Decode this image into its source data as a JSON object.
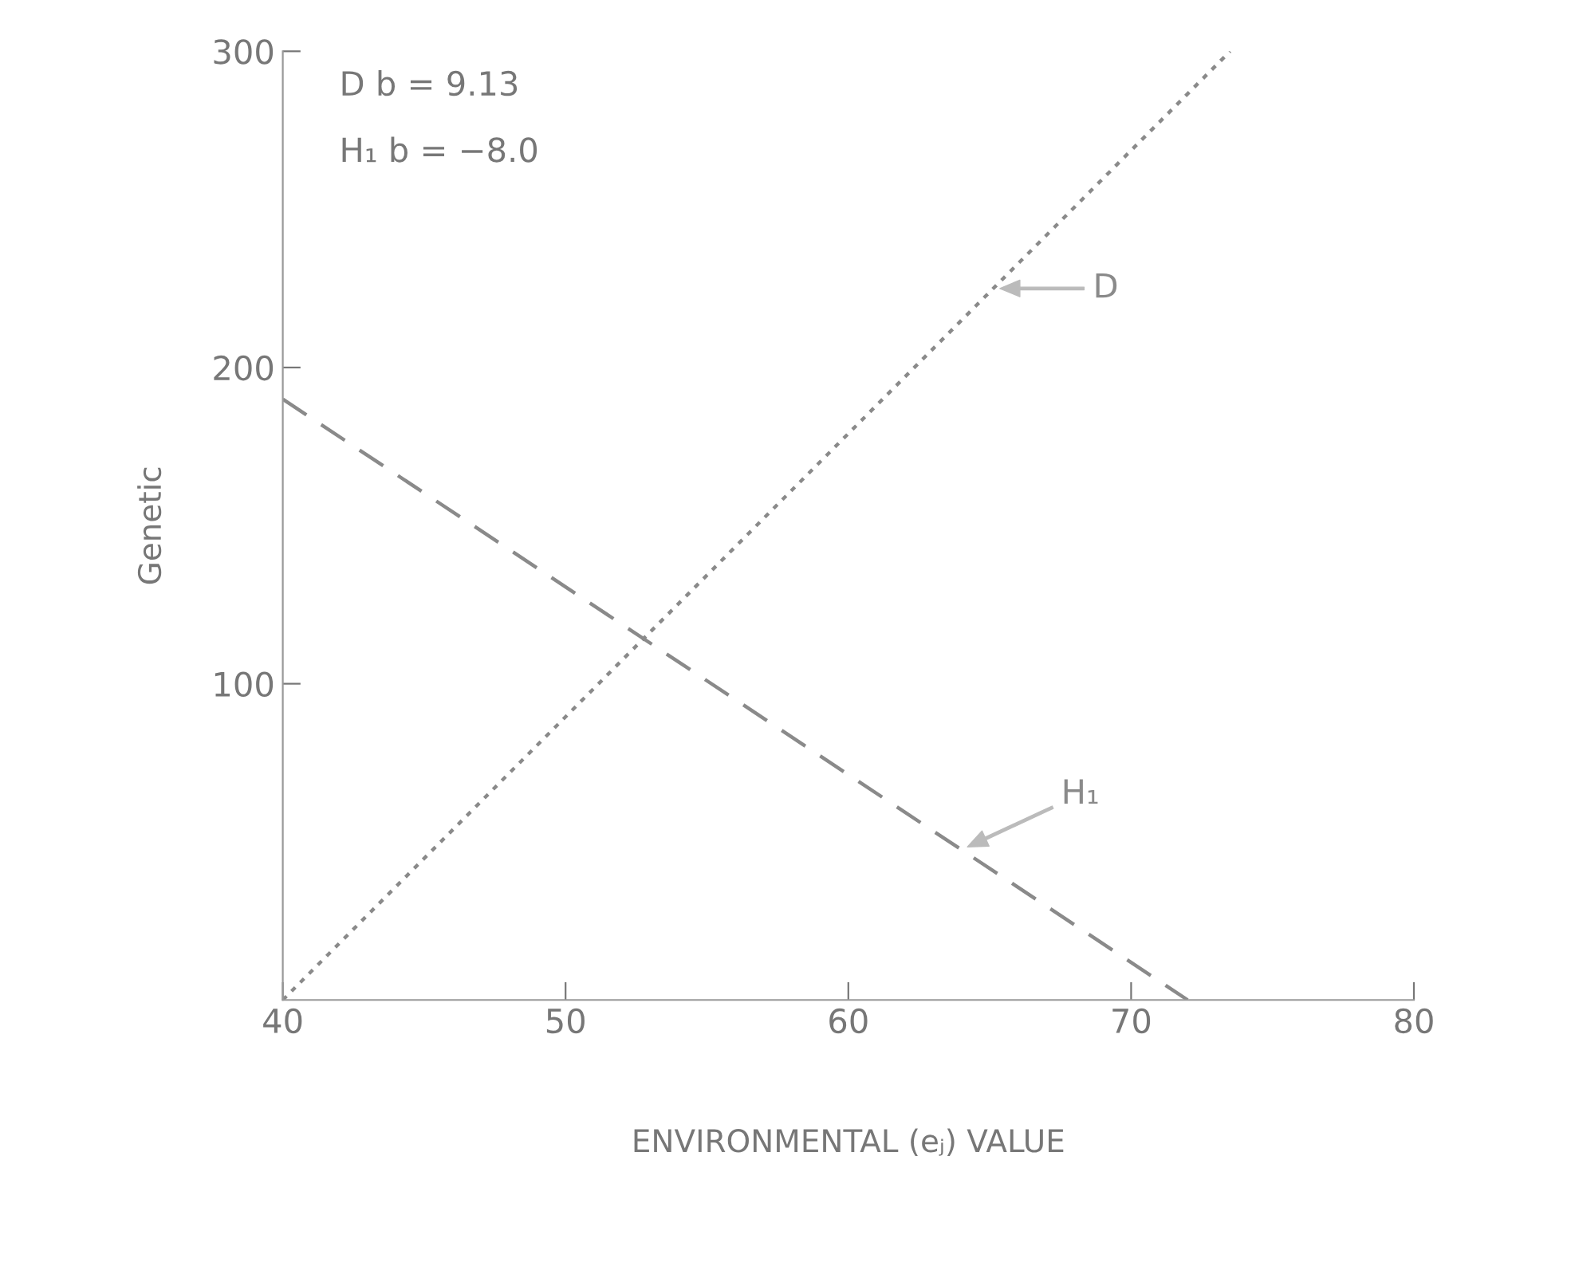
{
  "chart_data": {
    "type": "line",
    "xlabel": "ENVIRONMENTAL (eⱼ) VALUE",
    "ylabel": "Genetic",
    "xlim": [
      40,
      80
    ],
    "xticks": [
      40,
      50,
      60,
      70,
      80
    ],
    "ylim": [
      0,
      300
    ],
    "yticks": [
      100,
      200,
      300
    ],
    "grid": false,
    "legend": false,
    "marker": "none",
    "series": [
      {
        "name": "D",
        "color": "#8a8a8a",
        "x": [
          40,
          73.5
        ],
        "values": [
          0,
          300
        ],
        "line_style": "dotted"
      },
      {
        "name": "H₁",
        "color": "#8a8a8a",
        "x": [
          40,
          72
        ],
        "values": [
          190,
          0
        ],
        "line_style": "dashed"
      }
    ],
    "annotations": [
      "D b = 9.13",
      "H₁ b = −8.0"
    ]
  }
}
